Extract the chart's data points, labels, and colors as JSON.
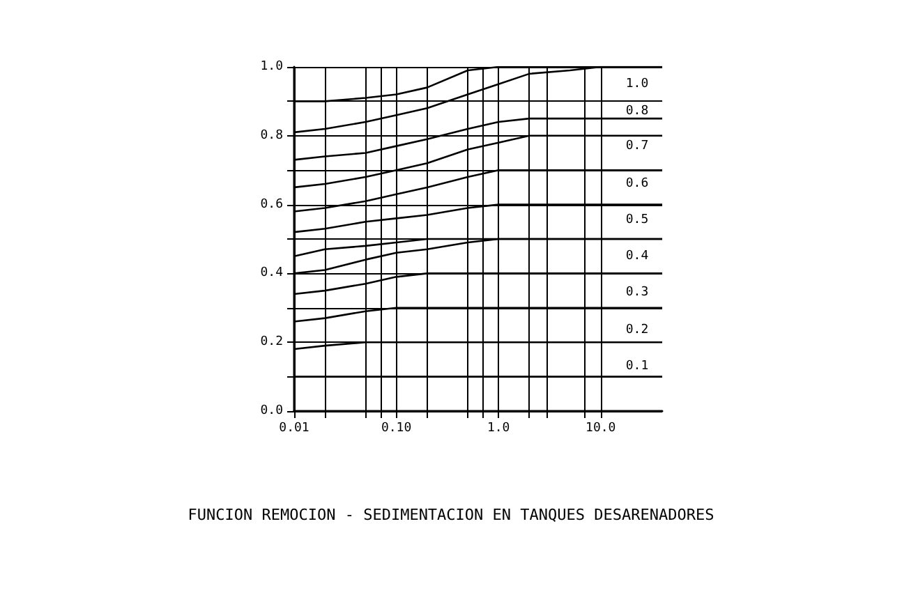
{
  "chart_data": {
    "type": "line",
    "title": "FUNCION REMOCION - SEDIMENTACION EN TANQUES DESARENADORES",
    "log": "x",
    "grid": true,
    "marker": "none",
    "line_style": "solid",
    "x": [
      0.01,
      0.02,
      0.05,
      0.1,
      0.2,
      0.5,
      1,
      2,
      5,
      10,
      40
    ],
    "xlim": [
      0.01,
      40
    ],
    "xticks": [
      {
        "value": 0.01,
        "label": "0.01"
      },
      {
        "value": 0.02,
        "label": null
      },
      {
        "value": 0.05,
        "label": null
      },
      {
        "value": 0.07,
        "label": null
      },
      {
        "value": 0.1,
        "label": "0.10"
      },
      {
        "value": 0.2,
        "label": null
      },
      {
        "value": 0.5,
        "label": null
      },
      {
        "value": 0.7,
        "label": null
      },
      {
        "value": 1,
        "label": "1.0"
      },
      {
        "value": 2,
        "label": null
      },
      {
        "value": 3,
        "label": null
      },
      {
        "value": 7,
        "label": null
      },
      {
        "value": 10,
        "label": "10.0"
      }
    ],
    "ylim": [
      0,
      1
    ],
    "yticks": [
      {
        "value": 0,
        "label": "0.0"
      },
      {
        "value": 0.1,
        "label": null
      },
      {
        "value": 0.2,
        "label": "0.2"
      },
      {
        "value": 0.3,
        "label": null
      },
      {
        "value": 0.4,
        "label": "0.4"
      },
      {
        "value": 0.5,
        "label": null
      },
      {
        "value": 0.6,
        "label": "0.6"
      },
      {
        "value": 0.7,
        "label": null
      },
      {
        "value": 0.8,
        "label": "0.8"
      },
      {
        "value": 0.9,
        "label": null
      },
      {
        "value": 1,
        "label": "1.0"
      }
    ],
    "series": [
      {
        "color": "#000000",
        "values": [
          0.9,
          0.9,
          0.91,
          0.92,
          0.94,
          0.99,
          1,
          1,
          1,
          1,
          1
        ]
      },
      {
        "color": "#000000",
        "values": [
          0.81,
          0.82,
          0.84,
          0.86,
          0.88,
          0.92,
          0.95,
          0.98,
          0.99,
          1,
          1
        ]
      },
      {
        "color": "#000000",
        "values": [
          0.73,
          0.74,
          0.75,
          0.77,
          0.79,
          0.82,
          0.84,
          0.85,
          0.85,
          0.85,
          0.85
        ]
      },
      {
        "color": "#000000",
        "values": [
          0.65,
          0.66,
          0.68,
          0.7,
          0.72,
          0.76,
          0.78,
          0.8,
          0.8,
          0.8,
          0.8
        ]
      },
      {
        "color": "#000000",
        "values": [
          0.58,
          0.59,
          0.61,
          0.63,
          0.65,
          0.68,
          0.7,
          0.7,
          0.7,
          0.7,
          0.7
        ]
      },
      {
        "color": "#000000",
        "values": [
          0.52,
          0.53,
          0.55,
          0.56,
          0.57,
          0.59,
          0.6,
          0.6,
          0.6,
          0.6,
          0.6
        ]
      },
      {
        "color": "#000000",
        "values": [
          0.45,
          0.47,
          0.48,
          0.49,
          0.5,
          0.5,
          0.5,
          0.5,
          0.5,
          0.5,
          0.5
        ]
      },
      {
        "color": "#000000",
        "values": [
          0.4,
          0.41,
          0.44,
          0.46,
          0.47,
          0.49,
          0.5,
          0.5,
          0.5,
          0.5,
          0.5
        ]
      },
      {
        "color": "#000000",
        "values": [
          0.34,
          0.35,
          0.37,
          0.39,
          0.4,
          0.4,
          0.4,
          0.4,
          0.4,
          0.4,
          0.4
        ]
      },
      {
        "color": "#000000",
        "values": [
          0.26,
          0.27,
          0.29,
          0.3,
          0.3,
          0.3,
          0.3,
          0.3,
          0.3,
          0.3,
          0.3
        ]
      },
      {
        "color": "#000000",
        "values": [
          0.18,
          0.19,
          0.2,
          0.2,
          0.2,
          0.2,
          0.2,
          0.2,
          0.2,
          0.2,
          0.2
        ]
      },
      {
        "color": "#000000",
        "values": [
          0.1,
          0.1,
          0.1,
          0.1,
          0.1,
          0.1,
          0.1,
          0.1,
          0.1,
          0.1,
          0.1
        ]
      }
    ],
    "annotations": [
      {
        "text": "1.0",
        "y": 0.95
      },
      {
        "text": "0.8",
        "y": 0.87
      },
      {
        "text": "0.7",
        "y": 0.77
      },
      {
        "text": "0.6",
        "y": 0.66
      },
      {
        "text": "0.5",
        "y": 0.555
      },
      {
        "text": "0.4",
        "y": 0.45
      },
      {
        "text": "0.3",
        "y": 0.345
      },
      {
        "text": "0.2",
        "y": 0.235
      },
      {
        "text": "0.1",
        "y": 0.13
      }
    ]
  }
}
